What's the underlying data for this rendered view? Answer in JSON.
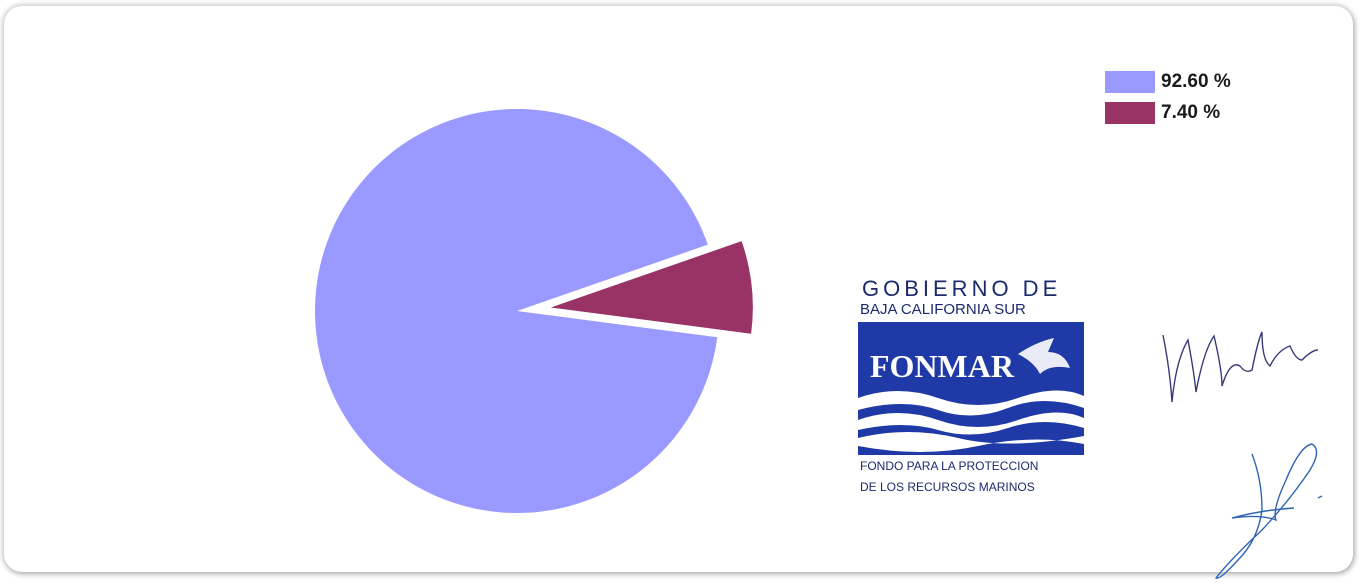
{
  "chart_data": {
    "type": "pie",
    "values": [
      92.6,
      7.4
    ],
    "colors": [
      "#9999ff",
      "#993366"
    ],
    "exploded": [
      false,
      true
    ],
    "legend": {
      "placement": "top-right",
      "entries": [
        "92.60 %",
        "7.40 %"
      ]
    }
  },
  "logo": {
    "line1": "GOBIERNO DE",
    "line2": "BAJA CALIFORNIA SUR",
    "wordmark": "FONMAR",
    "line3": "FONDO PARA LA PROTECCION",
    "line4": "DE LOS RECURSOS MARINOS"
  },
  "signatures": [
    "handwritten-signature-1",
    "handwritten-signature-2"
  ]
}
